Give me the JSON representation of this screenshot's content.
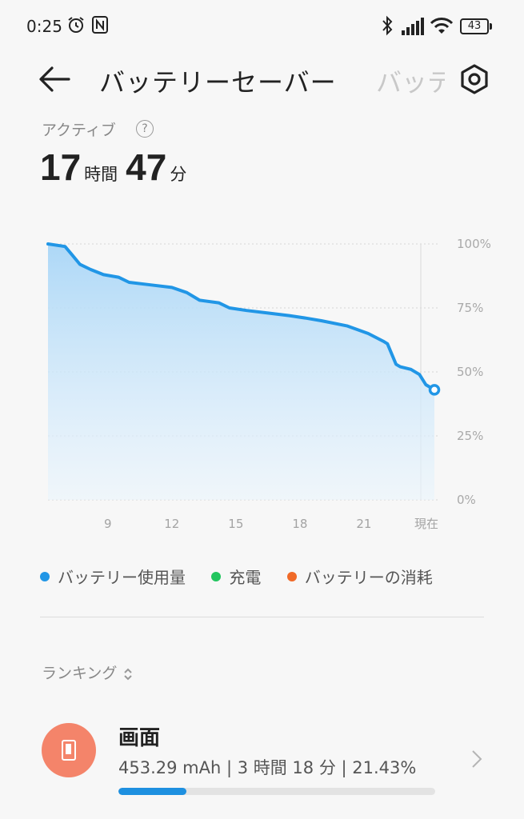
{
  "status_bar": {
    "time": "0:25",
    "battery_level": "43",
    "icons": [
      "alarm-icon",
      "nfc-icon",
      "bluetooth-icon",
      "signal-icon",
      "wifi-icon",
      "battery-icon"
    ]
  },
  "header": {
    "title": "バッテリーセーバー",
    "next_tab_peek": "バッテ"
  },
  "active": {
    "label": "アクティブ",
    "hours": "17",
    "hours_unit": "時間",
    "minutes": "47",
    "minutes_unit": "分"
  },
  "chart_data": {
    "type": "area",
    "y_ticks": [
      "100%",
      "75%",
      "50%",
      "25%",
      "0%"
    ],
    "x_ticks": [
      "9",
      "12",
      "15",
      "18",
      "21",
      "現在"
    ],
    "ylim": [
      0,
      100
    ],
    "x_unit": "hour of day",
    "xlim": [
      6.2,
      24.3
    ],
    "grid": true,
    "series": [
      {
        "name": "バッテリー使用量",
        "x": [
          6.2,
          7.0,
          7.3,
          7.7,
          8.2,
          8.8,
          9.5,
          10.0,
          11.0,
          12.0,
          12.7,
          13.3,
          14.2,
          14.7,
          15.5,
          16.5,
          17.5,
          18.3,
          19.0,
          20.2,
          21.2,
          21.9,
          22.1,
          22.5,
          22.7,
          23.2,
          23.6,
          23.9,
          24.3
        ],
        "y": [
          100,
          99,
          96,
          92,
          90,
          88,
          87,
          85,
          84,
          83,
          81,
          78,
          77,
          75,
          74,
          73,
          72,
          71,
          70,
          68,
          65,
          62,
          61,
          53,
          52,
          51,
          49,
          45,
          43
        ]
      }
    ]
  },
  "legend": [
    {
      "label": "バッテリー使用量",
      "color": "#2196e6"
    },
    {
      "label": "充電",
      "color": "#22c55e"
    },
    {
      "label": "バッテリーの消耗",
      "color": "#f06a28"
    }
  ],
  "ranking": {
    "label": "ランキング"
  },
  "app_row": {
    "name": "画面",
    "stats": "453.29 mAh | 3 時間 18 分  | 21.43%",
    "share": 0.2143,
    "icon_color": "#f4846a"
  }
}
